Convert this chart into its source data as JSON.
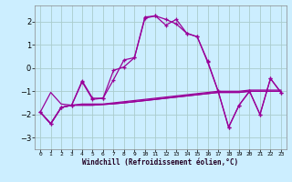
{
  "xlabel": "Windchill (Refroidissement éolien,°C)",
  "background_color": "#cceeff",
  "grid_color": "#aacccc",
  "line_color": "#990099",
  "xlim": [
    -0.5,
    23.5
  ],
  "ylim": [
    -3.5,
    2.7
  ],
  "yticks": [
    -3,
    -2,
    -1,
    0,
    1,
    2
  ],
  "xtick_labels": [
    "0",
    "1",
    "2",
    "3",
    "4",
    "5",
    "6",
    "7",
    "8",
    "9",
    "10",
    "11",
    "12",
    "13",
    "14",
    "15",
    "16",
    "17",
    "18",
    "19",
    "20",
    "21",
    "22",
    "23"
  ],
  "series_main": {
    "x": [
      0,
      1,
      2,
      3,
      4,
      5,
      6,
      7,
      8,
      9,
      10,
      11,
      12,
      13,
      14,
      15,
      16,
      17,
      18,
      19,
      20,
      21,
      22,
      23
    ],
    "y": [
      -1.9,
      -2.4,
      -1.7,
      -1.6,
      -0.55,
      -1.3,
      -1.3,
      -0.1,
      0.05,
      0.45,
      2.2,
      2.25,
      1.85,
      2.1,
      1.5,
      1.35,
      0.3,
      -1.0,
      -2.55,
      -1.6,
      -1.0,
      -2.0,
      -0.45,
      -1.05
    ]
  },
  "series_zigzag2": {
    "x": [
      0,
      1,
      2,
      3,
      4,
      5,
      6,
      7,
      8,
      9,
      10,
      11,
      12,
      13,
      14,
      15,
      16,
      17,
      18,
      19,
      20,
      21,
      22,
      23
    ],
    "y": [
      -1.9,
      -2.4,
      -1.7,
      -1.6,
      -0.6,
      -1.35,
      -1.3,
      -0.5,
      0.35,
      0.45,
      2.15,
      2.25,
      2.1,
      1.9,
      1.5,
      1.35,
      0.25,
      -1.0,
      -2.55,
      -1.6,
      -1.0,
      -2.0,
      -0.45,
      -1.05
    ]
  },
  "series_flat1": {
    "x": [
      0,
      1,
      2,
      3,
      4,
      5,
      6,
      7,
      8,
      9,
      10,
      11,
      12,
      13,
      14,
      15,
      16,
      17,
      18,
      19,
      20,
      21,
      22,
      23
    ],
    "y": [
      -1.9,
      -1.05,
      -1.55,
      -1.6,
      -1.55,
      -1.55,
      -1.55,
      -1.5,
      -1.45,
      -1.4,
      -1.35,
      -1.3,
      -1.25,
      -1.2,
      -1.15,
      -1.1,
      -1.05,
      -1.0,
      -1.0,
      -1.0,
      -0.95,
      -0.95,
      -0.95,
      -0.95
    ]
  },
  "series_flat2": {
    "x": [
      0,
      1,
      2,
      3,
      4,
      5,
      6,
      7,
      8,
      9,
      10,
      11,
      12,
      13,
      14,
      15,
      16,
      17,
      18,
      19,
      20,
      21,
      22,
      23
    ],
    "y": [
      -1.9,
      -2.4,
      -1.7,
      -1.6,
      -1.6,
      -1.6,
      -1.57,
      -1.54,
      -1.5,
      -1.45,
      -1.4,
      -1.35,
      -1.3,
      -1.25,
      -1.2,
      -1.15,
      -1.1,
      -1.05,
      -1.05,
      -1.05,
      -1.0,
      -1.0,
      -1.0,
      -1.0
    ]
  },
  "series_flat3": {
    "x": [
      0,
      1,
      2,
      3,
      4,
      5,
      6,
      7,
      8,
      9,
      10,
      11,
      12,
      13,
      14,
      15,
      16,
      17,
      18,
      19,
      20,
      21,
      22,
      23
    ],
    "y": [
      -1.9,
      -2.4,
      -1.7,
      -1.6,
      -1.6,
      -1.6,
      -1.57,
      -1.54,
      -1.5,
      -1.45,
      -1.4,
      -1.35,
      -1.3,
      -1.25,
      -1.2,
      -1.15,
      -1.1,
      -1.05,
      -1.05,
      -1.05,
      -1.0,
      -1.0,
      -1.0,
      -1.0
    ]
  }
}
